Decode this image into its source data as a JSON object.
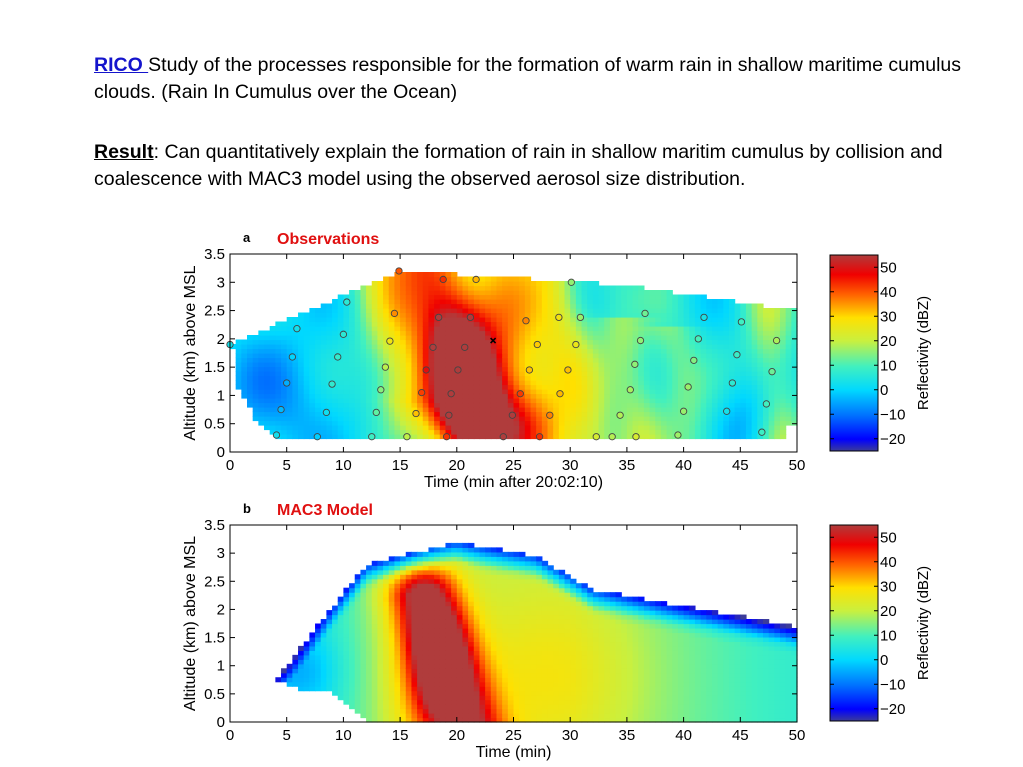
{
  "header": {
    "rico_link": "RICO ",
    "rico_text": " Study of the processes responsible for the formation of warm rain in shallow maritime cumulus clouds. (Rain In Cumulus over the Ocean)",
    "result_label": "Result",
    "result_text": ": Can quantitatively explain the formation of rain in shallow maritim cumulus by collision and coalescence with MAC3 model using the observed aerosol size distribution."
  },
  "colors": {
    "link": "#1414cc",
    "panel_title": "#e01010"
  },
  "chart_data": [
    {
      "type": "heatmap",
      "panel_label": "a",
      "title": "Observations",
      "xlabel": "Time (min after 20:02:10)",
      "ylabel": "Altitude (km) above MSL",
      "xlim": [
        0,
        50
      ],
      "ylim": [
        0,
        3.5
      ],
      "xticks": [
        "0",
        "5",
        "10",
        "15",
        "20",
        "25",
        "30",
        "35",
        "40",
        "45",
        "50"
      ],
      "yticks": [
        "0",
        "0.5",
        "1",
        "1.5",
        "2",
        "2.5",
        "3",
        "3.5"
      ],
      "colorbar": {
        "label": "Reflectivity (dBZ)",
        "ticks": [
          "50",
          "40",
          "30",
          "20",
          "10",
          "0",
          "−10",
          "−20"
        ],
        "range": [
          -25,
          55
        ]
      },
      "max_reflectivity_dbz": 45,
      "max_at": {
        "time_min": 21,
        "altitude_km": 1.2
      },
      "marker_x": {
        "time_min": 23.2,
        "altitude_km": 1.97
      },
      "sample_points": [
        {
          "x": 0,
          "y": 1.9
        },
        {
          "x": 4.1,
          "y": 0.3
        },
        {
          "x": 4.5,
          "y": 0.75
        },
        {
          "x": 5,
          "y": 1.22
        },
        {
          "x": 5.5,
          "y": 1.68
        },
        {
          "x": 5.9,
          "y": 2.18
        },
        {
          "x": 7.7,
          "y": 0.27
        },
        {
          "x": 8.5,
          "y": 0.7
        },
        {
          "x": 9,
          "y": 1.2
        },
        {
          "x": 9.5,
          "y": 1.68
        },
        {
          "x": 10,
          "y": 2.08
        },
        {
          "x": 10.3,
          "y": 2.65
        },
        {
          "x": 12.5,
          "y": 0.27
        },
        {
          "x": 12.9,
          "y": 0.7
        },
        {
          "x": 13.3,
          "y": 1.1
        },
        {
          "x": 13.7,
          "y": 1.5
        },
        {
          "x": 14.1,
          "y": 1.96
        },
        {
          "x": 14.5,
          "y": 2.45
        },
        {
          "x": 14.9,
          "y": 3.2
        },
        {
          "x": 15.6,
          "y": 0.27
        },
        {
          "x": 16.4,
          "y": 0.68
        },
        {
          "x": 16.9,
          "y": 1.05
        },
        {
          "x": 17.3,
          "y": 1.45
        },
        {
          "x": 17.9,
          "y": 1.85
        },
        {
          "x": 18.4,
          "y": 2.38
        },
        {
          "x": 18.8,
          "y": 3.05
        },
        {
          "x": 19.1,
          "y": 0.27
        },
        {
          "x": 19.3,
          "y": 0.65
        },
        {
          "x": 19.5,
          "y": 1.03
        },
        {
          "x": 20.1,
          "y": 1.45
        },
        {
          "x": 20.7,
          "y": 1.85
        },
        {
          "x": 21.2,
          "y": 2.38
        },
        {
          "x": 21.7,
          "y": 3.05
        },
        {
          "x": 24.1,
          "y": 0.27
        },
        {
          "x": 24.9,
          "y": 0.65
        },
        {
          "x": 25.6,
          "y": 1.03
        },
        {
          "x": 26.4,
          "y": 1.45
        },
        {
          "x": 27.1,
          "y": 1.9
        },
        {
          "x": 27.3,
          "y": 0.27
        },
        {
          "x": 28.2,
          "y": 0.65
        },
        {
          "x": 29.1,
          "y": 1.03
        },
        {
          "x": 29.8,
          "y": 1.45
        },
        {
          "x": 30.5,
          "y": 1.9
        },
        {
          "x": 30.9,
          "y": 2.38
        },
        {
          "x": 30.1,
          "y": 3.0
        },
        {
          "x": 33.7,
          "y": 0.27
        },
        {
          "x": 34.4,
          "y": 0.65
        },
        {
          "x": 35.3,
          "y": 1.1
        },
        {
          "x": 35.7,
          "y": 1.55
        },
        {
          "x": 36.2,
          "y": 1.97
        },
        {
          "x": 36.6,
          "y": 2.45
        },
        {
          "x": 39.5,
          "y": 0.3
        },
        {
          "x": 40,
          "y": 0.72
        },
        {
          "x": 40.4,
          "y": 1.15
        },
        {
          "x": 40.9,
          "y": 1.62
        },
        {
          "x": 41.3,
          "y": 2.0
        },
        {
          "x": 41.8,
          "y": 2.38
        },
        {
          "x": 43.8,
          "y": 0.72
        },
        {
          "x": 44.3,
          "y": 1.22
        },
        {
          "x": 44.7,
          "y": 1.72
        },
        {
          "x": 45.1,
          "y": 2.3
        },
        {
          "x": 46.9,
          "y": 0.35
        },
        {
          "x": 47.3,
          "y": 0.85
        },
        {
          "x": 47.8,
          "y": 1.42
        },
        {
          "x": 48.2,
          "y": 1.97
        },
        {
          "x": 35.8,
          "y": 0.27
        },
        {
          "x": 32.3,
          "y": 0.27
        },
        {
          "x": 26.1,
          "y": 2.32
        },
        {
          "x": 29.0,
          "y": 2.38
        }
      ]
    },
    {
      "type": "heatmap",
      "panel_label": "b",
      "title": "MAC3 Model",
      "xlabel": "Time (min)",
      "ylabel": "Altitude (km) above MSL",
      "xlim": [
        0,
        50
      ],
      "ylim": [
        0,
        3.5
      ],
      "xticks": [
        "0",
        "5",
        "10",
        "15",
        "20",
        "25",
        "30",
        "35",
        "40",
        "45",
        "50"
      ],
      "yticks": [
        "0",
        "0.5",
        "1",
        "1.5",
        "2",
        "2.5",
        "3",
        "3.5"
      ],
      "colorbar": {
        "label": "Reflectivity (dBZ)",
        "ticks": [
          "50",
          "40",
          "30",
          "20",
          "10",
          "0",
          "−10",
          "−20"
        ],
        "range": [
          -25,
          55
        ]
      },
      "max_reflectivity_dbz": 42,
      "max_at": {
        "time_min": 17.5,
        "altitude_km": 0.9
      }
    }
  ]
}
